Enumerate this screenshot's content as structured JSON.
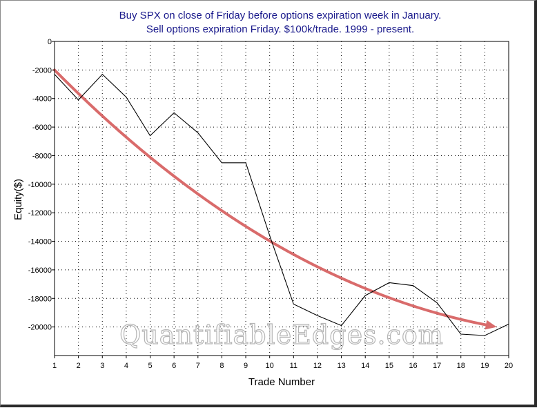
{
  "chart_data": {
    "type": "line",
    "title": "Buy SPX on close of Friday before options expiration week in January.",
    "subtitle": "Sell options expiration Friday. $100k/trade. 1999 - present.",
    "xlabel": "Trade Number",
    "ylabel": "Equity($)",
    "xlim": [
      1,
      20
    ],
    "ylim": [
      -22000,
      0
    ],
    "x_ticks": [
      1,
      2,
      3,
      4,
      5,
      6,
      7,
      8,
      9,
      10,
      11,
      12,
      13,
      14,
      15,
      16,
      17,
      18,
      19,
      20
    ],
    "y_ticks": [
      0,
      -2000,
      -4000,
      -6000,
      -8000,
      -10000,
      -12000,
      -14000,
      -16000,
      -18000,
      -20000
    ],
    "grid": true,
    "series": [
      {
        "x": [
          1,
          2,
          3,
          4,
          5,
          6,
          7,
          8,
          9,
          10,
          11,
          12,
          13,
          14,
          15,
          16,
          17,
          18,
          19,
          20
        ],
        "values": [
          -2300,
          -4100,
          -2300,
          -3900,
          -6600,
          -5000,
          -6400,
          -8500,
          -8500,
          -13600,
          -18400,
          -19200,
          -19900,
          -17800,
          -16900,
          -17100,
          -18300,
          -20500,
          -20600,
          -19800
        ],
        "color": "#000000"
      }
    ],
    "annotations": [
      {
        "type": "trend-arrow",
        "color": "#d96b6b",
        "x": [
          1,
          10,
          19.5
        ],
        "values": [
          -2000,
          -13900,
          -20000
        ]
      }
    ],
    "watermark": "QuantifiableEdges.com"
  }
}
